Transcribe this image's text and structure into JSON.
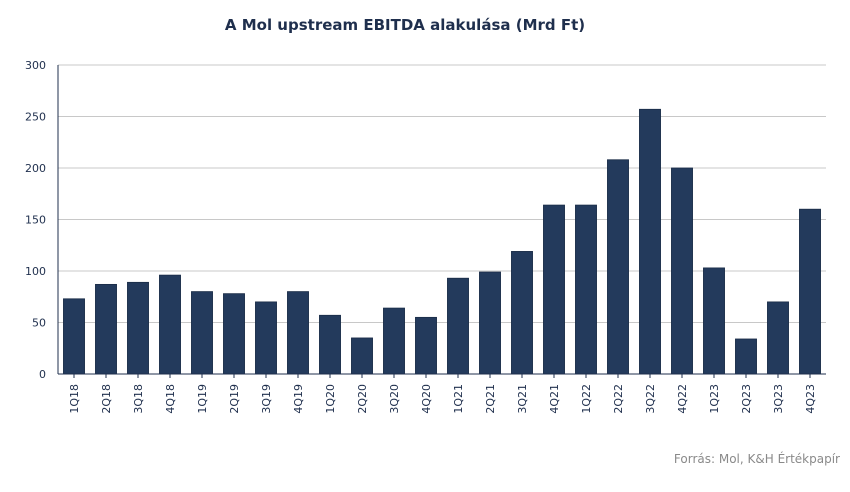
{
  "chart_data": {
    "type": "bar",
    "title": "A Mol upstream EBITDA alakulása (Mrd Ft)",
    "categories": [
      "1Q18",
      "2Q18",
      "3Q18",
      "4Q18",
      "1Q19",
      "2Q19",
      "3Q19",
      "4Q19",
      "1Q20",
      "2Q20",
      "3Q20",
      "4Q20",
      "1Q21",
      "2Q21",
      "3Q21",
      "4Q21",
      "1Q22",
      "2Q22",
      "3Q22",
      "4Q22",
      "1Q23",
      "2Q23",
      "3Q23",
      "4Q23"
    ],
    "values": [
      73,
      87,
      89,
      96,
      80,
      78,
      70,
      80,
      57,
      35,
      64,
      55,
      93,
      99,
      119,
      164,
      164,
      208,
      257,
      200,
      103,
      34,
      70,
      160
    ],
    "ylim": [
      0,
      300
    ],
    "yticks": [
      0,
      50,
      100,
      150,
      200,
      250,
      300
    ],
    "grid": true,
    "bar_color": "#233a5c",
    "grid_color": "#c8c8c8"
  },
  "source": "Forrás: Mol, K&H Értékpapír"
}
